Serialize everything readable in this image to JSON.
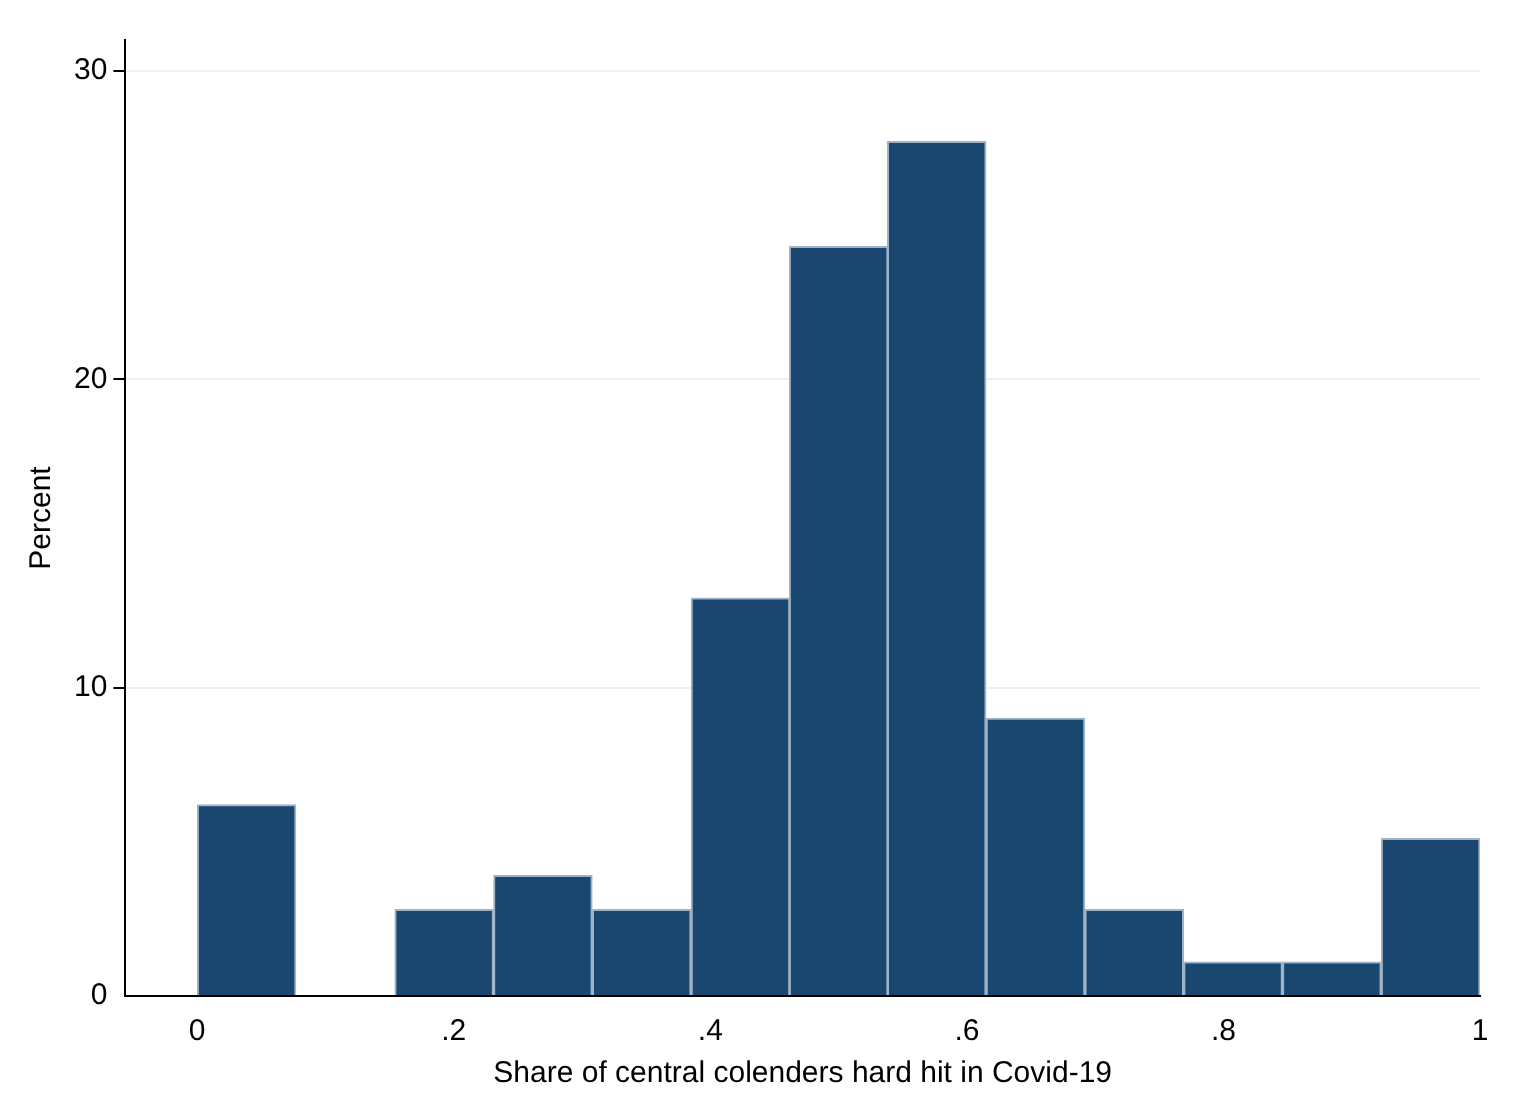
{
  "chart_data": {
    "type": "histogram",
    "xlabel": "Share of central colenders hard hit in Covid-19",
    "ylabel": "Percent",
    "bins": [
      0,
      0.077,
      0.154,
      0.231,
      0.308,
      0.385,
      0.462,
      0.538,
      0.615,
      0.692,
      0.769,
      0.846,
      0.923,
      1
    ],
    "values": [
      6.2,
      0,
      2.8,
      3.9,
      2.8,
      12.9,
      24.3,
      27.7,
      9,
      2.8,
      1.1,
      1.1,
      5.1
    ],
    "color": "#1a476f",
    "xlim": [
      -0.056,
      1
    ],
    "xticks": [
      0,
      {
        "value": 0.2,
        "label": ".2"
      },
      {
        "value": 0.4,
        "label": ".4"
      },
      {
        "value": 0.6,
        "label": ".6"
      },
      {
        "value": 0.8,
        "label": ".8"
      },
      1
    ],
    "ylim": [
      0,
      31
    ],
    "yticks": [
      0,
      10,
      20,
      30
    ],
    "grid": "y",
    "legend": false
  }
}
